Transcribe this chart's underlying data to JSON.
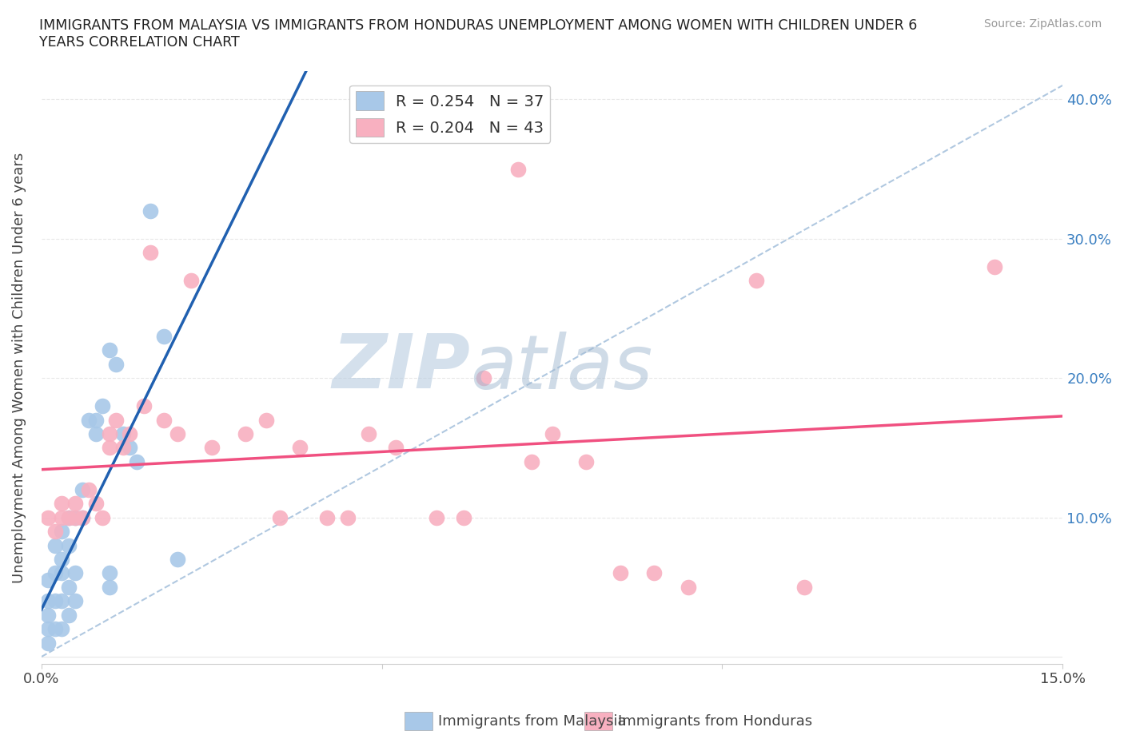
{
  "title": "IMMIGRANTS FROM MALAYSIA VS IMMIGRANTS FROM HONDURAS UNEMPLOYMENT AMONG WOMEN WITH CHILDREN UNDER 6\nYEARS CORRELATION CHART",
  "source": "Source: ZipAtlas.com",
  "ylabel": "Unemployment Among Women with Children Under 6 years",
  "xlim": [
    0.0,
    0.15
  ],
  "ylim": [
    -0.005,
    0.42
  ],
  "xticks": [
    0.0,
    0.05,
    0.1,
    0.15
  ],
  "yticks": [
    0.0,
    0.1,
    0.2,
    0.3,
    0.4
  ],
  "xtick_labels": [
    "0.0%",
    "",
    "",
    "15.0%"
  ],
  "ytick_labels_left": [
    "",
    "",
    "",
    "",
    ""
  ],
  "ytick_labels_right": [
    "",
    "10.0%",
    "20.0%",
    "30.0%",
    "40.0%"
  ],
  "malaysia_color": "#a8c8e8",
  "honduras_color": "#f8b0c0",
  "malaysia_line_color": "#2060b0",
  "honduras_line_color": "#f05080",
  "diag_line_color": "#b0c8e0",
  "watermark_top": "ZIP",
  "watermark_bottom": "atlas",
  "watermark_color": "#ccdcec",
  "legend_R_malaysia": "R = 0.254",
  "legend_N_malaysia": "N = 37",
  "legend_R_honduras": "R = 0.204",
  "legend_N_honduras": "N = 43",
  "malaysia_x": [
    0.001,
    0.001,
    0.001,
    0.001,
    0.001,
    0.002,
    0.002,
    0.002,
    0.002,
    0.003,
    0.003,
    0.003,
    0.003,
    0.003,
    0.004,
    0.004,
    0.004,
    0.004,
    0.005,
    0.005,
    0.005,
    0.006,
    0.006,
    0.007,
    0.008,
    0.008,
    0.009,
    0.01,
    0.01,
    0.01,
    0.011,
    0.012,
    0.013,
    0.014,
    0.016,
    0.018,
    0.02
  ],
  "malaysia_y": [
    0.01,
    0.02,
    0.03,
    0.04,
    0.055,
    0.02,
    0.04,
    0.06,
    0.08,
    0.02,
    0.04,
    0.06,
    0.07,
    0.09,
    0.03,
    0.05,
    0.08,
    0.1,
    0.04,
    0.06,
    0.1,
    0.1,
    0.12,
    0.17,
    0.16,
    0.17,
    0.18,
    0.05,
    0.06,
    0.22,
    0.21,
    0.16,
    0.15,
    0.14,
    0.32,
    0.23,
    0.07
  ],
  "honduras_x": [
    0.001,
    0.002,
    0.003,
    0.003,
    0.004,
    0.005,
    0.005,
    0.006,
    0.007,
    0.008,
    0.009,
    0.01,
    0.01,
    0.011,
    0.012,
    0.013,
    0.015,
    0.016,
    0.018,
    0.02,
    0.022,
    0.025,
    0.03,
    0.033,
    0.035,
    0.038,
    0.042,
    0.045,
    0.048,
    0.052,
    0.058,
    0.062,
    0.065,
    0.07,
    0.072,
    0.075,
    0.08,
    0.085,
    0.09,
    0.095,
    0.105,
    0.112,
    0.14
  ],
  "honduras_y": [
    0.1,
    0.09,
    0.1,
    0.11,
    0.1,
    0.1,
    0.11,
    0.1,
    0.12,
    0.11,
    0.1,
    0.15,
    0.16,
    0.17,
    0.15,
    0.16,
    0.18,
    0.29,
    0.17,
    0.16,
    0.27,
    0.15,
    0.16,
    0.17,
    0.1,
    0.15,
    0.1,
    0.1,
    0.16,
    0.15,
    0.1,
    0.1,
    0.2,
    0.35,
    0.14,
    0.16,
    0.14,
    0.06,
    0.06,
    0.05,
    0.27,
    0.05,
    0.28
  ],
  "background_color": "#ffffff",
  "grid_color": "#e8e8e8"
}
